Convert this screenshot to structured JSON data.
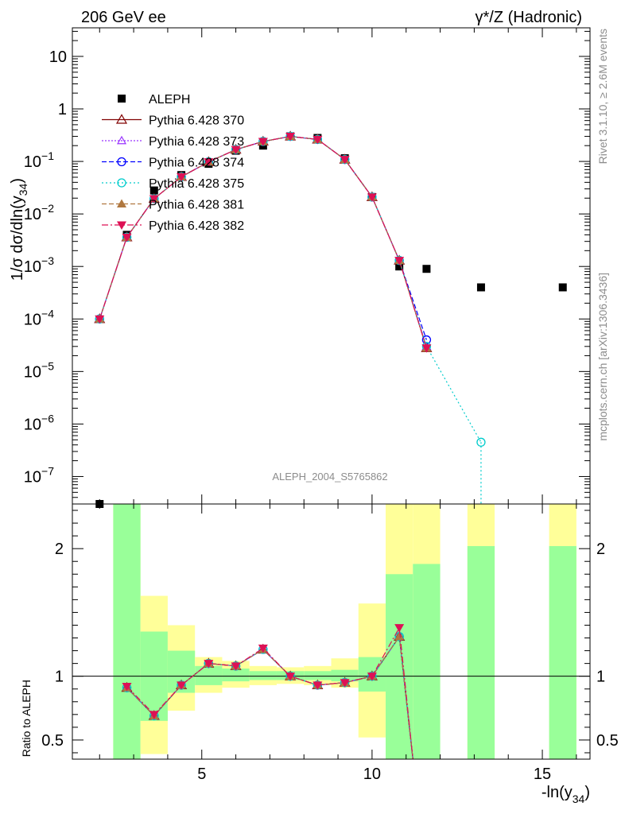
{
  "header": {
    "left": "206 GeV ee",
    "right": "γ*/Z (Hadronic)"
  },
  "side_labels": {
    "rivet": "Rivet 3.1.10, ≥ 2.6M events",
    "mcplots": "mcplots.cern.ch [arXiv:1306.3436]"
  },
  "watermark": "ALEPH_2004_S5765862",
  "ylabel_main": "1/σ  dσ/dln(y",
  "ylabel_main_sub": "34",
  "ylabel_main_close": ")",
  "ylabel_ratio": "Ratio to ALEPH",
  "xlabel": "-ln(y",
  "xlabel_sub": "34",
  "xlabel_close": ")",
  "colors": {
    "data": "#000000",
    "band_inner": "#99ff99",
    "band_outer": "#ffff99",
    "p370": "#800000",
    "p373": "#9933ff",
    "p374": "#0000ff",
    "p375": "#00cccc",
    "p381": "#b07840",
    "p382": "#dd1155"
  },
  "chart_data": [
    {
      "type": "scatter",
      "title": "",
      "xlabel": "-ln(y34)",
      "ylabel": "1/σ dσ/dln(y34)",
      "yscale": "log",
      "xlim": [
        1.2,
        16.4
      ],
      "ylim": [
        3e-08,
        35
      ],
      "x_ticks": [
        "5",
        "10",
        "15"
      ],
      "y_ticks": [
        "10",
        "1",
        "10^-1",
        "10^-2",
        "10^-3",
        "10^-4",
        "10^-5",
        "10^-6",
        "10^-7"
      ],
      "legend_position": "top-left",
      "series": [
        {
          "name": "ALEPH",
          "style": "data",
          "x": [
            2.0,
            2.8,
            3.6,
            4.4,
            5.2,
            6.0,
            6.8,
            7.6,
            8.4,
            9.2,
            10.0,
            10.8,
            11.6,
            13.2,
            15.6
          ],
          "y": [
            3e-08,
            0.004,
            0.028,
            0.055,
            0.09,
            0.16,
            0.2,
            0.3,
            0.28,
            0.115,
            0.021,
            0.001,
            0.0009,
            0.0004,
            0.0004
          ]
        },
        {
          "name": "Pythia 6.428 370",
          "style": "p370",
          "x": [
            2.0,
            2.8,
            3.6,
            4.4,
            5.2,
            6.0,
            6.8,
            7.6,
            8.4,
            9.2,
            10.0,
            10.8,
            11.6
          ],
          "y": [
            0.0001,
            0.0036,
            0.0195,
            0.051,
            0.098,
            0.168,
            0.24,
            0.3,
            0.262,
            0.109,
            0.021,
            0.0013,
            2.8e-05
          ]
        },
        {
          "name": "Pythia 6.428 373",
          "style": "p373",
          "x": [
            2.0,
            2.8,
            3.6,
            4.4,
            5.2,
            6.0,
            6.8,
            7.6,
            8.4,
            9.2,
            10.0,
            10.8,
            11.6
          ],
          "y": [
            0.0001,
            0.0036,
            0.0195,
            0.051,
            0.098,
            0.168,
            0.24,
            0.3,
            0.262,
            0.109,
            0.021,
            0.0013,
            3e-05
          ]
        },
        {
          "name": "Pythia 6.428 374",
          "style": "p374",
          "x": [
            2.0,
            2.8,
            3.6,
            4.4,
            5.2,
            6.0,
            6.8,
            7.6,
            8.4,
            9.2,
            10.0,
            10.8,
            11.6
          ],
          "y": [
            0.0001,
            0.0036,
            0.0195,
            0.051,
            0.098,
            0.168,
            0.24,
            0.3,
            0.262,
            0.109,
            0.021,
            0.0013,
            4e-05
          ]
        },
        {
          "name": "Pythia 6.428 375",
          "style": "p375",
          "x": [
            2.0,
            2.8,
            3.6,
            4.4,
            5.2,
            6.0,
            6.8,
            7.6,
            8.4,
            9.2,
            10.0,
            10.8,
            11.6,
            13.2
          ],
          "y": [
            0.0001,
            0.0036,
            0.0195,
            0.051,
            0.098,
            0.168,
            0.24,
            0.3,
            0.262,
            0.109,
            0.021,
            0.0013,
            3e-05,
            4.5e-07
          ]
        },
        {
          "name": "Pythia 6.428 381",
          "style": "p381",
          "x": [
            2.0,
            2.8,
            3.6,
            4.4,
            5.2,
            6.0,
            6.8,
            7.6,
            8.4,
            9.2,
            10.0,
            10.8,
            11.6
          ],
          "y": [
            0.0001,
            0.0036,
            0.0195,
            0.051,
            0.098,
            0.168,
            0.24,
            0.3,
            0.262,
            0.109,
            0.021,
            0.0013,
            2.8e-05
          ]
        },
        {
          "name": "Pythia 6.428 382",
          "style": "p382",
          "x": [
            2.0,
            2.8,
            3.6,
            4.4,
            5.2,
            6.0,
            6.8,
            7.6,
            8.4,
            9.2,
            10.0,
            10.8,
            11.6
          ],
          "y": [
            0.0001,
            0.0036,
            0.0195,
            0.051,
            0.098,
            0.168,
            0.24,
            0.3,
            0.262,
            0.109,
            0.021,
            0.0013,
            2.8e-05
          ]
        }
      ]
    },
    {
      "type": "scatter",
      "title": "",
      "xlabel": "-ln(y34)",
      "ylabel": "Ratio to ALEPH",
      "xlim": [
        1.2,
        16.4
      ],
      "ylim": [
        0.35,
        2.35
      ],
      "x_ticks": [
        "5",
        "10",
        "15"
      ],
      "y_ticks": [
        "0.5",
        "1",
        "2"
      ],
      "reference_line": 1,
      "uncertainty_bands": [
        {
          "x0": 2.4,
          "x1": 3.2,
          "inner": [
            0.35,
            2.35
          ],
          "outer": [
            0.35,
            2.35
          ]
        },
        {
          "x0": 3.2,
          "x1": 4.0,
          "inner": [
            0.65,
            1.35
          ],
          "outer": [
            0.39,
            1.63
          ]
        },
        {
          "x0": 4.0,
          "x1": 4.8,
          "inner": [
            0.87,
            1.2
          ],
          "outer": [
            0.73,
            1.4
          ]
        },
        {
          "x0": 4.8,
          "x1": 5.6,
          "inner": [
            0.93,
            1.08
          ],
          "outer": [
            0.87,
            1.15
          ]
        },
        {
          "x0": 5.6,
          "x1": 6.4,
          "inner": [
            0.96,
            1.06
          ],
          "outer": [
            0.91,
            1.12
          ]
        },
        {
          "x0": 6.4,
          "x1": 7.2,
          "inner": [
            0.97,
            1.04
          ],
          "outer": [
            0.93,
            1.08
          ]
        },
        {
          "x0": 7.2,
          "x1": 8.0,
          "inner": [
            0.97,
            1.04
          ],
          "outer": [
            0.94,
            1.07
          ]
        },
        {
          "x0": 8.0,
          "x1": 8.8,
          "inner": [
            0.97,
            1.04
          ],
          "outer": [
            0.93,
            1.08
          ]
        },
        {
          "x0": 8.8,
          "x1": 9.6,
          "inner": [
            0.96,
            1.05
          ],
          "outer": [
            0.91,
            1.14
          ]
        },
        {
          "x0": 9.6,
          "x1": 10.4,
          "inner": [
            0.88,
            1.15
          ],
          "outer": [
            0.52,
            1.57
          ]
        },
        {
          "x0": 10.4,
          "x1": 11.2,
          "inner": [
            0.35,
            1.8
          ],
          "outer": [
            0.35,
            2.35
          ]
        },
        {
          "x0": 11.2,
          "x1": 12.0,
          "inner": [
            0.35,
            1.88
          ],
          "outer": [
            0.35,
            2.35
          ]
        },
        {
          "x0": 12.8,
          "x1": 13.6,
          "inner": [
            0.35,
            2.02
          ],
          "outer": [
            0.35,
            2.35
          ]
        },
        {
          "x0": 15.2,
          "x1": 16.0,
          "inner": [
            0.35,
            2.02
          ],
          "outer": [
            0.35,
            2.35
          ]
        }
      ],
      "series": [
        {
          "name": "Pythia 6.428 370",
          "style": "p370",
          "x": [
            2.8,
            3.6,
            4.4,
            5.2,
            6.0,
            6.8,
            7.6,
            8.4,
            9.2,
            10.0,
            10.8,
            11.2
          ],
          "y": [
            0.91,
            0.69,
            0.93,
            1.1,
            1.08,
            1.21,
            1.0,
            0.93,
            0.95,
            1.0,
            1.31,
            0.3
          ]
        },
        {
          "name": "Pythia 6.428 373",
          "style": "p373",
          "x": [
            2.8,
            3.6,
            4.4,
            5.2,
            6.0,
            6.8,
            7.6,
            8.4,
            9.2,
            10.0,
            10.8,
            11.2
          ],
          "y": [
            0.91,
            0.69,
            0.93,
            1.1,
            1.08,
            1.21,
            1.0,
            0.93,
            0.95,
            1.0,
            1.31,
            0.3
          ]
        },
        {
          "name": "Pythia 6.428 374",
          "style": "p374",
          "x": [
            2.8,
            3.6,
            4.4,
            5.2,
            6.0,
            6.8,
            7.6,
            8.4,
            9.2,
            10.0,
            10.8,
            11.2
          ],
          "y": [
            0.91,
            0.69,
            0.93,
            1.1,
            1.08,
            1.21,
            1.0,
            0.93,
            0.95,
            1.0,
            1.31,
            0.3
          ]
        },
        {
          "name": "Pythia 6.428 375",
          "style": "p375",
          "x": [
            2.8,
            3.6,
            4.4,
            5.2,
            6.0,
            6.8,
            7.6,
            8.4,
            9.2,
            10.0,
            10.8,
            11.2
          ],
          "y": [
            0.91,
            0.69,
            0.93,
            1.1,
            1.08,
            1.21,
            1.0,
            0.93,
            0.95,
            1.0,
            1.31,
            0.3
          ]
        },
        {
          "name": "Pythia 6.428 381",
          "style": "p381",
          "x": [
            2.8,
            3.6,
            4.4,
            5.2,
            6.0,
            6.8,
            7.6,
            8.4,
            9.2,
            10.0,
            10.8,
            11.2
          ],
          "y": [
            0.91,
            0.69,
            0.93,
            1.1,
            1.08,
            1.21,
            1.0,
            0.93,
            0.95,
            1.0,
            1.31,
            0.3
          ]
        },
        {
          "name": "Pythia 6.428 382",
          "style": "p382",
          "x": [
            2.8,
            3.6,
            4.4,
            5.2,
            6.0,
            6.8,
            7.6,
            8.4,
            9.2,
            10.0,
            10.8,
            11.2
          ],
          "y": [
            0.92,
            0.7,
            0.93,
            1.1,
            1.08,
            1.22,
            1.0,
            0.93,
            0.95,
            1.0,
            1.38,
            0.3
          ]
        }
      ]
    }
  ]
}
